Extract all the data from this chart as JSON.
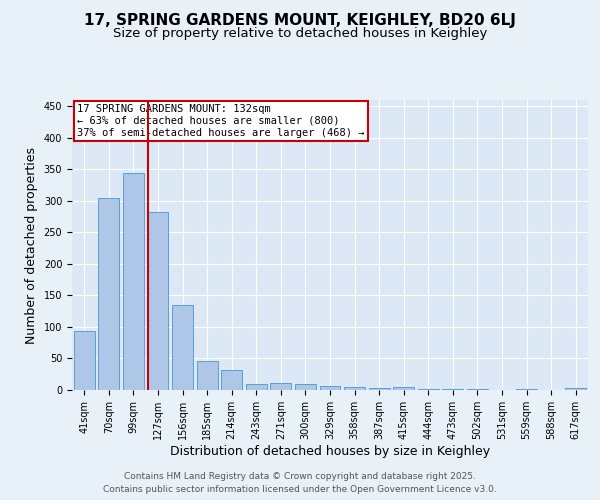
{
  "title1": "17, SPRING GARDENS MOUNT, KEIGHLEY, BD20 6LJ",
  "title2": "Size of property relative to detached houses in Keighley",
  "xlabel": "Distribution of detached houses by size in Keighley",
  "ylabel": "Number of detached properties",
  "categories": [
    "41sqm",
    "70sqm",
    "99sqm",
    "127sqm",
    "156sqm",
    "185sqm",
    "214sqm",
    "243sqm",
    "271sqm",
    "300sqm",
    "329sqm",
    "358sqm",
    "387sqm",
    "415sqm",
    "444sqm",
    "473sqm",
    "502sqm",
    "531sqm",
    "559sqm",
    "588sqm",
    "617sqm"
  ],
  "values": [
    93,
    305,
    345,
    283,
    135,
    46,
    31,
    9,
    11,
    10,
    7,
    5,
    3,
    4,
    2,
    1,
    1,
    0,
    1,
    0,
    3
  ],
  "bar_color": "#aec6e8",
  "bar_edge_color": "#5a9fd4",
  "highlight_index": 3,
  "vline_color": "#cc0000",
  "annotation_lines": [
    "17 SPRING GARDENS MOUNT: 132sqm",
    "← 63% of detached houses are smaller (800)",
    "37% of semi-detached houses are larger (468) →"
  ],
  "annotation_box_color": "#cc0000",
  "ylim": [
    0,
    460
  ],
  "yticks": [
    0,
    50,
    100,
    150,
    200,
    250,
    300,
    350,
    400,
    450
  ],
  "footer1": "Contains HM Land Registry data © Crown copyright and database right 2025.",
  "footer2": "Contains public sector information licensed under the Open Government Licence v3.0.",
  "bg_color": "#e8f0f8",
  "plot_bg_color": "#dce8f5",
  "grid_color": "#ffffff",
  "title1_fontsize": 11,
  "title2_fontsize": 9.5,
  "tick_fontsize": 7,
  "axis_label_fontsize": 9,
  "footer_fontsize": 6.5,
  "annotation_fontsize": 7.5
}
